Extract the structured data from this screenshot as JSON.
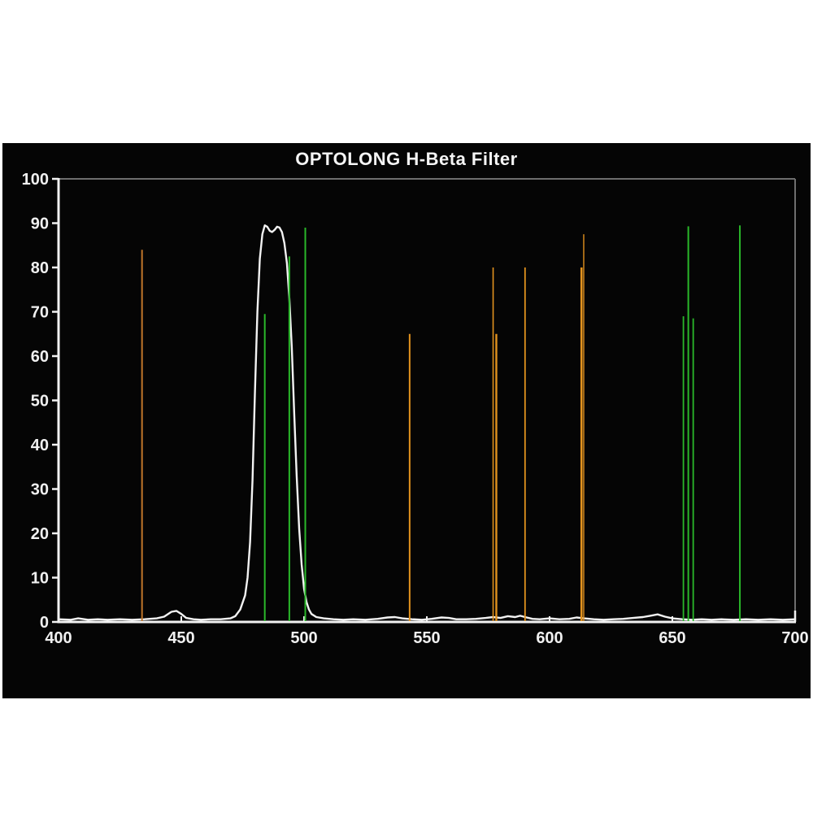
{
  "page": {
    "background_color": "#ffffff",
    "panel_color": "#050505"
  },
  "chart_data": {
    "type": "line",
    "title": "OPTOLONG H-Beta Filter",
    "xlabel": "",
    "ylabel": "",
    "xlim": [
      400,
      700
    ],
    "ylim": [
      0,
      100
    ],
    "x_ticks": [
      400,
      450,
      500,
      550,
      600,
      650,
      700
    ],
    "y_ticks": [
      0,
      10,
      20,
      30,
      40,
      50,
      60,
      70,
      80,
      90,
      100
    ],
    "grid": false,
    "legend": false,
    "axis_color": "#f2f2f2",
    "frame_color": "#6e6e6e",
    "tick_label_color": "#f0f0f0",
    "curve": {
      "name": "filter-transmission-percent",
      "color": "#f2f2f2",
      "points": [
        [
          400,
          0.6
        ],
        [
          405,
          0.5
        ],
        [
          408,
          0.8
        ],
        [
          412,
          0.5
        ],
        [
          416,
          0.6
        ],
        [
          420,
          0.5
        ],
        [
          425,
          0.6
        ],
        [
          430,
          0.5
        ],
        [
          435,
          0.6
        ],
        [
          440,
          0.8
        ],
        [
          443,
          1.2
        ],
        [
          446,
          2.3
        ],
        [
          448,
          2.5
        ],
        [
          450,
          1.8
        ],
        [
          452,
          0.9
        ],
        [
          455,
          0.6
        ],
        [
          458,
          0.5
        ],
        [
          462,
          0.6
        ],
        [
          466,
          0.6
        ],
        [
          470,
          0.8
        ],
        [
          472,
          1.3
        ],
        [
          474,
          2.8
        ],
        [
          476,
          6
        ],
        [
          477,
          10
        ],
        [
          478,
          18
        ],
        [
          479,
          32
        ],
        [
          480,
          52
        ],
        [
          481,
          70
        ],
        [
          482,
          82
        ],
        [
          483,
          87.5
        ],
        [
          484,
          89.5
        ],
        [
          485,
          89.2
        ],
        [
          486,
          88.3
        ],
        [
          487,
          88.0
        ],
        [
          488,
          88.5
        ],
        [
          489,
          89.2
        ],
        [
          490,
          89.0
        ],
        [
          491,
          88.0
        ],
        [
          492,
          85.5
        ],
        [
          493,
          81
        ],
        [
          494,
          73
        ],
        [
          495,
          62
        ],
        [
          496,
          47
        ],
        [
          497,
          33
        ],
        [
          498,
          21
        ],
        [
          499,
          13
        ],
        [
          500,
          7.5
        ],
        [
          501,
          4.5
        ],
        [
          502,
          2.8
        ],
        [
          503,
          1.8
        ],
        [
          505,
          1.1
        ],
        [
          508,
          0.8
        ],
        [
          512,
          0.6
        ],
        [
          516,
          0.5
        ],
        [
          520,
          0.6
        ],
        [
          525,
          0.5
        ],
        [
          530,
          0.7
        ],
        [
          534,
          1.0
        ],
        [
          537,
          1.1
        ],
        [
          540,
          0.8
        ],
        [
          544,
          0.6
        ],
        [
          548,
          0.5
        ],
        [
          552,
          0.7
        ],
        [
          556,
          1.0
        ],
        [
          559,
          0.9
        ],
        [
          562,
          0.6
        ],
        [
          566,
          0.6
        ],
        [
          570,
          0.7
        ],
        [
          574,
          0.9
        ],
        [
          577,
          1.1
        ],
        [
          580,
          0.9
        ],
        [
          583,
          1.3
        ],
        [
          586,
          1.1
        ],
        [
          588,
          1.4
        ],
        [
          590,
          1.1
        ],
        [
          593,
          0.7
        ],
        [
          596,
          0.6
        ],
        [
          600,
          0.8
        ],
        [
          604,
          0.6
        ],
        [
          608,
          0.7
        ],
        [
          611,
          1.0
        ],
        [
          614,
          0.8
        ],
        [
          618,
          0.6
        ],
        [
          622,
          0.5
        ],
        [
          626,
          0.6
        ],
        [
          630,
          0.7
        ],
        [
          634,
          0.9
        ],
        [
          638,
          1.1
        ],
        [
          641,
          1.4
        ],
        [
          644,
          1.7
        ],
        [
          647,
          1.2
        ],
        [
          650,
          0.8
        ],
        [
          654,
          0.6
        ],
        [
          658,
          0.5
        ],
        [
          662,
          0.6
        ],
        [
          666,
          0.5
        ],
        [
          670,
          0.6
        ],
        [
          675,
          0.5
        ],
        [
          680,
          0.6
        ],
        [
          685,
          0.5
        ],
        [
          690,
          0.6
        ],
        [
          695,
          0.5
        ],
        [
          700,
          0.6
        ]
      ]
    },
    "emission_line_colors": {
      "orange": "#e2921e",
      "orange_dark": "#c0762a",
      "green": "#2ab82a"
    },
    "emission_lines": [
      {
        "wavelength_nm": 434,
        "value": 84,
        "color": "orange_dark",
        "width": 2
      },
      {
        "wavelength_nm": 484,
        "value": 69.5,
        "color": "green",
        "width": 2
      },
      {
        "wavelength_nm": 494,
        "value": 82.5,
        "color": "green",
        "width": 2
      },
      {
        "wavelength_nm": 500.5,
        "value": 89,
        "color": "green",
        "width": 2
      },
      {
        "wavelength_nm": 543,
        "value": 65,
        "color": "orange",
        "width": 2
      },
      {
        "wavelength_nm": 577,
        "value": 80,
        "color": "orange",
        "width": 1.6
      },
      {
        "wavelength_nm": 578.3,
        "value": 65,
        "color": "orange",
        "width": 2.4
      },
      {
        "wavelength_nm": 590,
        "value": 80,
        "color": "orange",
        "width": 1.8
      },
      {
        "wavelength_nm": 613,
        "value": 80,
        "color": "orange",
        "width": 2.6
      },
      {
        "wavelength_nm": 613.9,
        "value": 87.5,
        "color": "orange",
        "width": 1.4
      },
      {
        "wavelength_nm": 654.5,
        "value": 69,
        "color": "green",
        "width": 1.8
      },
      {
        "wavelength_nm": 656.5,
        "value": 89.3,
        "color": "green",
        "width": 2
      },
      {
        "wavelength_nm": 658.5,
        "value": 68.5,
        "color": "green",
        "width": 1.8
      },
      {
        "wavelength_nm": 677.5,
        "value": 89.5,
        "color": "green",
        "width": 2
      }
    ]
  }
}
